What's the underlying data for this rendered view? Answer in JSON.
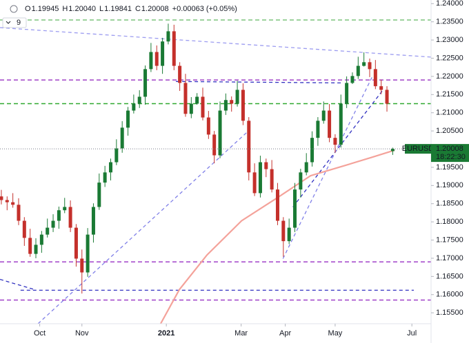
{
  "chart_data": {
    "type": "candlestick",
    "ohlc_header": [
      {
        "label": "O",
        "value": "1.19945"
      },
      {
        "label": "H",
        "value": "1.20040"
      },
      {
        "label": "L",
        "value": "1.19841"
      },
      {
        "label": "C",
        "value": "1.20008"
      }
    ],
    "change": "+0.00063 (+0.05%)",
    "indicator_count": "9",
    "symbol": "EURUSD",
    "countdown": "18:22:30",
    "up_color": "#1a7a34",
    "down_color": "#c4302b",
    "x": [
      0,
      3,
      6,
      9,
      12,
      15,
      18,
      21,
      24,
      27,
      30,
      33,
      36,
      39,
      42,
      45,
      48,
      51,
      54,
      57,
      60,
      63,
      66,
      69,
      72,
      75,
      78,
      81,
      84,
      87,
      90,
      93,
      96,
      99,
      102,
      105,
      108,
      111,
      114,
      117,
      120,
      123,
      126,
      129,
      132,
      135,
      138,
      141,
      144,
      147,
      150,
      153,
      156,
      159,
      162,
      165,
      168,
      171,
      174,
      177,
      180,
      183,
      186,
      189,
      192,
      195,
      198,
      201,
      204
    ],
    "open": [
      1.187,
      1.186,
      1.1854,
      1.1847,
      1.1803,
      1.1756,
      1.1712,
      1.1737,
      1.1765,
      1.1784,
      1.1803,
      1.1832,
      1.1841,
      1.1784,
      1.1699,
      1.1661,
      1.1765,
      1.1841,
      1.1908,
      1.1936,
      1.1964,
      1.2002,
      1.2059,
      1.2106,
      1.2125,
      1.2144,
      1.222,
      1.2267,
      1.2229,
      1.2296,
      1.2324,
      1.2229,
      1.2182,
      1.2097,
      1.2125,
      1.2144,
      1.2087,
      1.204,
      1.1983,
      1.2106,
      1.2135,
      1.2125,
      1.2163,
      1.2078,
      1.1936,
      1.1879,
      1.1964,
      1.1945,
      1.1889,
      1.1803,
      1.1747,
      1.1784,
      1.1889,
      1.1936,
      1.1964,
      1.2031,
      1.2078,
      1.2106,
      1.2031,
      1.2012,
      1.2125,
      1.2182,
      1.2201,
      1.2229,
      1.2239,
      1.222,
      1.2173,
      1.2163,
      1.19945
    ],
    "high": [
      1.1888,
      1.187,
      1.1879,
      1.1865,
      1.1813,
      1.1781,
      1.1755,
      1.1775,
      1.1809,
      1.1821,
      1.1842,
      1.1866,
      1.1859,
      1.1794,
      1.1724,
      1.1783,
      1.1851,
      1.1933,
      1.1954,
      1.1974,
      1.2027,
      1.2077,
      1.2116,
      1.215,
      1.2162,
      1.223,
      1.2292,
      1.2285,
      1.2306,
      1.2345,
      1.2342,
      1.2239,
      1.2207,
      1.2143,
      1.2154,
      1.2169,
      1.2105,
      1.205,
      1.2131,
      1.2153,
      1.2145,
      1.2188,
      1.2181,
      1.2088,
      1.1961,
      1.1982,
      1.1974,
      1.197,
      1.1907,
      1.1813,
      1.1809,
      1.1907,
      1.1946,
      1.1989,
      1.2049,
      1.2088,
      1.2131,
      1.2124,
      1.2041,
      1.215,
      1.22,
      1.2211,
      1.2254,
      1.2266,
      1.2249,
      1.2245,
      1.2191,
      1.2173,
      1.2004
    ],
    "low": [
      1.1848,
      1.1832,
      1.1839,
      1.1791,
      1.1734,
      1.1704,
      1.17,
      1.1715,
      1.1757,
      1.1772,
      1.1781,
      1.1824,
      1.1772,
      1.1677,
      1.1603,
      1.1649,
      1.1743,
      1.1833,
      1.1896,
      1.1914,
      1.1956,
      1.199,
      1.2037,
      1.2098,
      1.2113,
      1.2122,
      1.2212,
      1.2217,
      1.2207,
      1.2288,
      1.2217,
      1.216,
      1.2089,
      1.2085,
      1.2122,
      1.2079,
      1.2028,
      1.1961,
      1.1975,
      1.2094,
      1.2103,
      1.2117,
      1.2066,
      1.1914,
      1.1871,
      1.1867,
      1.1923,
      1.1881,
      1.1791,
      1.1704,
      1.1739,
      1.1772,
      1.1867,
      1.1928,
      1.1952,
      1.2009,
      1.207,
      1.2019,
      1.199,
      1.2004,
      1.2113,
      1.2179,
      1.2193,
      1.2227,
      1.2198,
      1.2165,
      1.2151,
      1.2103,
      1.19841
    ],
    "close": [
      1.186,
      1.1854,
      1.1847,
      1.1803,
      1.1756,
      1.1712,
      1.1737,
      1.1765,
      1.1784,
      1.1803,
      1.1832,
      1.1841,
      1.1784,
      1.1699,
      1.1661,
      1.1765,
      1.1841,
      1.1908,
      1.1936,
      1.1964,
      1.2002,
      1.2059,
      1.2106,
      1.2125,
      1.2144,
      1.222,
      1.2267,
      1.2229,
      1.2296,
      1.2324,
      1.2229,
      1.2182,
      1.2097,
      1.2125,
      1.2144,
      1.2087,
      1.204,
      1.1983,
      1.2106,
      1.2135,
      1.2125,
      1.2163,
      1.2078,
      1.1936,
      1.1879,
      1.1964,
      1.1945,
      1.1889,
      1.1803,
      1.1747,
      1.1784,
      1.1889,
      1.1936,
      1.1964,
      1.2031,
      1.2078,
      1.2106,
      1.2031,
      1.2012,
      1.2125,
      1.2182,
      1.2201,
      1.2229,
      1.2239,
      1.222,
      1.2173,
      1.2163,
      1.2125,
      1.20008
    ],
    "xlim": [
      -0.7,
      224
    ],
    "ylim": [
      1.152,
      1.241
    ],
    "xticks": [
      {
        "value": 20,
        "label": "Oct"
      },
      {
        "value": 42,
        "label": "Nov"
      },
      {
        "value": 86,
        "label": "2021"
      },
      {
        "value": 125,
        "label": "Mar"
      },
      {
        "value": 148,
        "label": "Apr"
      },
      {
        "value": 174,
        "label": "May"
      },
      {
        "value": 214,
        "label": "Jul"
      }
    ],
    "yticks": [
      {
        "value": 1.155,
        "label": "1.15500"
      },
      {
        "value": 1.16,
        "label": "1.16000"
      },
      {
        "value": 1.165,
        "label": "1.16500"
      },
      {
        "value": 1.17,
        "label": "1.17000"
      },
      {
        "value": 1.175,
        "label": "1.17500"
      },
      {
        "value": 1.18,
        "label": "1.18000"
      },
      {
        "value": 1.185,
        "label": "1.18500"
      },
      {
        "value": 1.19,
        "label": "1.19000"
      },
      {
        "value": 1.195,
        "label": "1.19500"
      },
      {
        "value": 1.2,
        "label": "1.20000"
      },
      {
        "value": 1.205,
        "label": "1.20500"
      },
      {
        "value": 1.21,
        "label": "1.21000"
      },
      {
        "value": 1.215,
        "label": "1.21500"
      },
      {
        "value": 1.22,
        "label": "1.22000"
      },
      {
        "value": 1.225,
        "label": "1.22500"
      },
      {
        "value": 1.23,
        "label": "1.23000"
      },
      {
        "value": 1.235,
        "label": "1.23500"
      },
      {
        "value": 1.24,
        "label": "1.24000"
      }
    ],
    "grid": false,
    "hlines": [
      {
        "value": 1.2355,
        "color": "#7cc47c"
      },
      {
        "value": 1.219,
        "color": "#a040c8"
      },
      {
        "value": 1.2125,
        "color": "#2ea82e"
      },
      {
        "value": 1.169,
        "color": "#a040c8"
      },
      {
        "value": 1.1585,
        "color": "#a040c8"
      }
    ],
    "trendlines": [
      {
        "x": [
          -0.7,
          224
        ],
        "y": [
          1.2334,
          1.2253
        ],
        "color": "#9b9bf0"
      },
      {
        "x": [
          19.1,
          128.8
        ],
        "y": [
          1.152,
          1.205
        ],
        "color": "#8080e8"
      },
      {
        "x": [
          -0.7,
          17.3
        ],
        "y": [
          1.1642,
          1.1614
        ],
        "color": "#3030c0"
      },
      {
        "x": [
          91,
          177.3
        ],
        "y": [
          1.2186,
          1.2182
        ],
        "color": "#3030c0"
      },
      {
        "x": [
          152,
          199
        ],
        "y": [
          1.1841,
          1.2163
        ],
        "color": "#3030c0"
      },
      {
        "x": [
          146.8,
          193.5
        ],
        "y": [
          1.1699,
          1.2201
        ],
        "color": "#8080e8"
      },
      {
        "x": [
          10,
          215
        ],
        "y": [
          1.1612,
          1.1612
        ],
        "color": "#3030c0"
      }
    ],
    "ma": {
      "color": "#f4a29a",
      "x": [
        82,
        92.8,
        107.2,
        125.2,
        143.2,
        161.2,
        179.1,
        193.5,
        205
      ],
      "y": [
        1.151,
        1.1614,
        1.1709,
        1.1803,
        1.1864,
        1.1927,
        1.1955,
        1.1978,
        1.1997
      ]
    }
  }
}
